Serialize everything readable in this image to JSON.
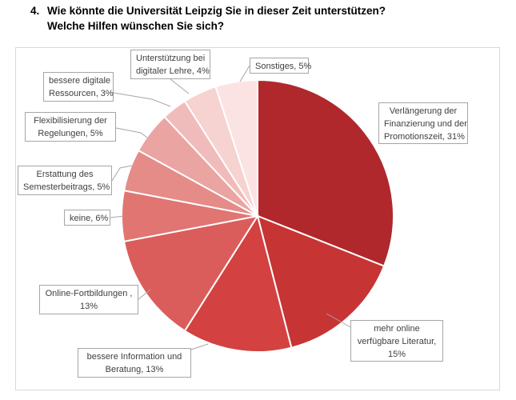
{
  "question": {
    "number": "4.",
    "line1": "Wie könnte die Universität Leipzig Sie in dieser Zeit unterstützen?",
    "line2": "Welche Hilfen wünschen Sie sich?"
  },
  "chart_data": {
    "type": "pie",
    "title": "",
    "slices": [
      {
        "label_lines": [
          "Verlängerung der",
          "Finanzierung und der",
          "Promotionszeit, 31%"
        ],
        "value": 31,
        "color": "#b0282b"
      },
      {
        "label_lines": [
          "mehr online",
          "verfügbare Literatur,",
          "15%"
        ],
        "value": 15,
        "color": "#c73434"
      },
      {
        "label_lines": [
          "bessere Information und",
          "Beratung, 13%"
        ],
        "value": 13,
        "color": "#d34141"
      },
      {
        "label_lines": [
          "Online-Fortbildungen ,",
          "13%"
        ],
        "value": 13,
        "color": "#da5d5b"
      },
      {
        "label_lines": [
          "keine, 6%"
        ],
        "value": 6,
        "color": "#e07572"
      },
      {
        "label_lines": [
          "Erstattung des",
          "Semesterbeitrags, 5%"
        ],
        "value": 5,
        "color": "#e58b88"
      },
      {
        "label_lines": [
          "Flexibilisierung der",
          "Regelungen, 5%"
        ],
        "value": 5,
        "color": "#eaa4a2"
      },
      {
        "label_lines": [
          "bessere digitale",
          "Ressourcen, 3%"
        ],
        "value": 3,
        "color": "#f0bcbb"
      },
      {
        "label_lines": [
          "Unterstützung bei",
          "digitaler Lehre, 4%"
        ],
        "value": 4,
        "color": "#f6d2d1"
      },
      {
        "label_lines": [
          "Sonstiges, 5%"
        ],
        "value": 5,
        "color": "#fce3e3"
      }
    ]
  }
}
